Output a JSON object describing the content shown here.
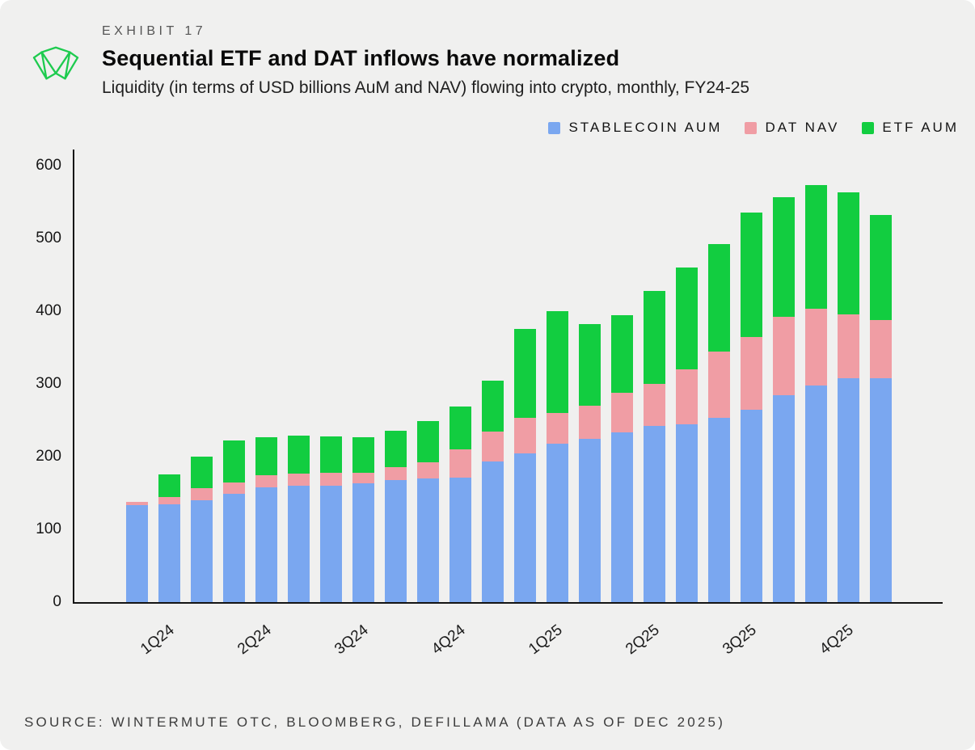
{
  "header": {
    "exhibit": "EXHIBIT 17",
    "title": "Sequential ETF and DAT inflows have normalized",
    "subtitle": "Liquidity (in terms of USD billions AuM and NAV) flowing into crypto, monthly, FY24-25"
  },
  "legend": [
    {
      "label": "STABLECOIN AUM",
      "color": "#7aa7f0"
    },
    {
      "label": "DAT NAV",
      "color": "#f09da4"
    },
    {
      "label": "ETF AUM",
      "color": "#12cd40"
    }
  ],
  "source": "SOURCE: WINTERMUTE OTC, BLOOMBERG, DEFILLAMA (DATA AS OF DEC 2025)",
  "brand_color": "#1ecb4f",
  "chart_data": {
    "type": "bar",
    "stacked": true,
    "title": "Sequential ETF and DAT inflows have normalized",
    "subtitle": "Liquidity (in terms of USD billions AuM and NAV) flowing into crypto, monthly, FY24-25",
    "categories": [
      "1Q24",
      "2Q24",
      "3Q24",
      "4Q24",
      "1Q25",
      "2Q25",
      "3Q25",
      "4Q25"
    ],
    "bars_per_category": 3,
    "series": [
      {
        "name": "STABLECOIN AUM",
        "color": "#7aa7f0",
        "values": [
          133,
          135,
          140,
          149,
          158,
          160,
          160,
          163,
          168,
          170,
          171,
          193,
          205,
          218,
          225,
          233,
          242,
          245,
          253,
          265,
          285,
          298,
          308,
          308
        ]
      },
      {
        "name": "DAT NAV",
        "color": "#f09da4",
        "values": [
          5,
          9,
          17,
          15,
          17,
          17,
          18,
          15,
          18,
          22,
          39,
          42,
          48,
          42,
          45,
          55,
          58,
          75,
          92,
          100,
          107,
          105,
          88,
          80
        ]
      },
      {
        "name": "ETF AUM",
        "color": "#12cd40",
        "values": [
          0,
          32,
          43,
          58,
          52,
          52,
          50,
          49,
          50,
          57,
          59,
          70,
          123,
          140,
          112,
          107,
          128,
          140,
          147,
          171,
          165,
          170,
          167,
          144
        ]
      }
    ],
    "ylim": [
      0,
      600
    ],
    "yticks": [
      0,
      100,
      200,
      300,
      400,
      500,
      600
    ],
    "ylabel": "",
    "xlabel": "",
    "grid": false,
    "legend_position": "top-right"
  }
}
